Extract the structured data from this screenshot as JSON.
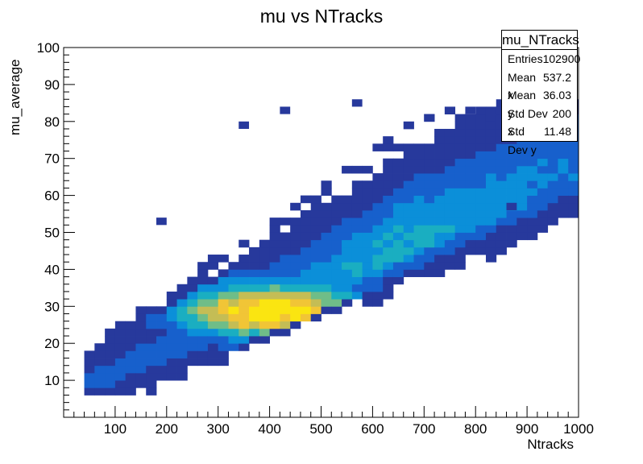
{
  "chart_data": {
    "type": "heatmap",
    "title": "mu vs NTracks",
    "xlabel": "Ntracks",
    "ylabel": "mu_average",
    "xlim": [
      0,
      1000
    ],
    "ylim": [
      0,
      100
    ],
    "x_ticks": [
      "100",
      "200",
      "300",
      "400",
      "500",
      "600",
      "700",
      "800",
      "900",
      "1000"
    ],
    "y_ticks": [
      "10",
      "20",
      "30",
      "40",
      "50",
      "60",
      "70",
      "80",
      "90",
      "100"
    ],
    "bins": {
      "x_width": 20,
      "y_width": 2
    },
    "ridge": {
      "x_start": 40,
      "x_end": 1000,
      "slope": 0.06,
      "intercept": 6
    },
    "peak": {
      "x": 400,
      "y": 29
    },
    "colors": [
      "#27399c",
      "#1760cc",
      "#0b8fd9",
      "#1aaec1",
      "#6fbd88",
      "#c4bd55",
      "#f1c536",
      "#fae511"
    ],
    "stats_box": {
      "name": "mu_NTracks",
      "rows": [
        {
          "label": "Entries",
          "value": "102900"
        },
        {
          "label": "Mean x",
          "value": "537.2"
        },
        {
          "label": "Mean y",
          "value": "36.03"
        },
        {
          "label": "Std Dev x",
          "value": "200"
        },
        {
          "label": "Std Dev y",
          "value": "11.48"
        }
      ]
    }
  }
}
